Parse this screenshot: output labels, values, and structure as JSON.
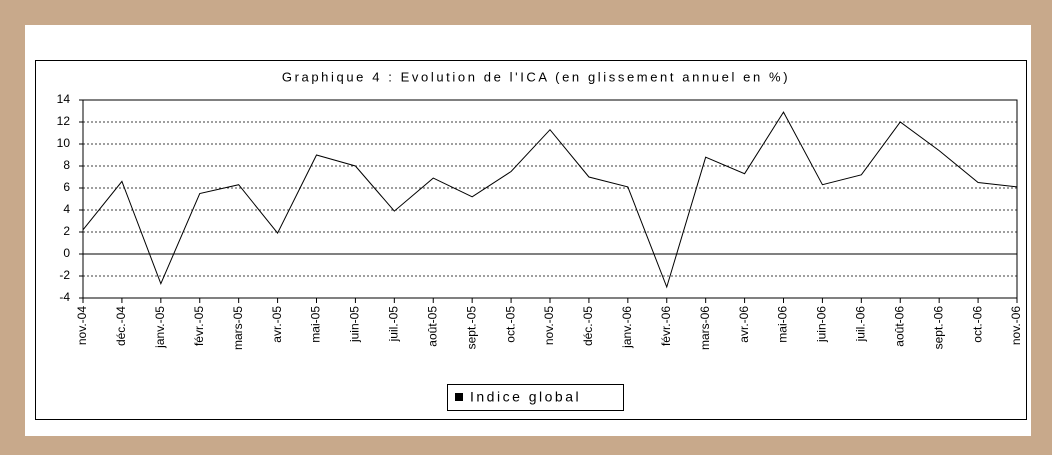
{
  "chart_data": {
    "type": "line",
    "title": "Graphique 4 : Evolution de l'ICA (en glissement annuel en %)",
    "categories": [
      "nov.-04",
      "déc.-04",
      "janv.-05",
      "févr.-05",
      "mars-05",
      "avr.-05",
      "mai-05",
      "juin-05",
      "juil.-05",
      "août-05",
      "sept.-05",
      "oct.-05",
      "nov.-05",
      "déc.-05",
      "janv.-06",
      "févr.-06",
      "mars-06",
      "avr.-06",
      "mai-06",
      "juin-06",
      "juil.-06",
      "août-06",
      "sept.-06",
      "oct.-06",
      "nov.-06"
    ],
    "series": [
      {
        "name": "Indice global",
        "color": "#000000",
        "values": [
          2.2,
          6.6,
          -2.7,
          5.5,
          6.3,
          1.9,
          9.0,
          8.0,
          3.9,
          6.9,
          5.2,
          7.5,
          11.3,
          7.0,
          6.1,
          -3.0,
          8.8,
          7.3,
          12.9,
          6.3,
          7.2,
          12.0,
          9.4,
          6.5,
          6.1
        ]
      }
    ],
    "ylim": [
      -4,
      14
    ],
    "yticks": [
      -4,
      -2,
      0,
      2,
      4,
      6,
      8,
      10,
      12,
      14
    ],
    "grid": true
  }
}
